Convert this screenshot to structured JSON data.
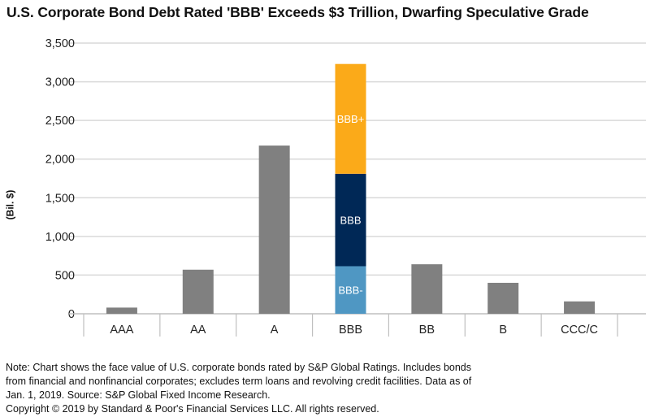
{
  "chart_data": {
    "type": "bar",
    "title": "U.S. Corporate Bond Debt Rated 'BBB' Exceeds $3 Trillion, Dwarfing Speculative Grade",
    "xlabel": "",
    "ylabel": "(Bil. $)",
    "ylim": [
      0,
      3500
    ],
    "yticks": [
      "0",
      "500",
      "1,000",
      "1,500",
      "2,000",
      "2,500",
      "3,000",
      "3,500"
    ],
    "ytick_values": [
      0,
      500,
      1000,
      1500,
      2000,
      2500,
      3000,
      3500
    ],
    "grid": true,
    "categories": [
      "AAA",
      "AA",
      "A",
      "BBB",
      "BB",
      "B",
      "CCC/C"
    ],
    "values": [
      80,
      570,
      2175,
      null,
      640,
      400,
      160
    ],
    "bar_color": "#808080",
    "stacked": {
      "category": "BBB",
      "segments": [
        {
          "name": "BBB-",
          "value": 615,
          "color": "#4f97c3"
        },
        {
          "name": "BBB",
          "value": 1195,
          "color": "#002856"
        },
        {
          "name": "BBB+",
          "value": 1420,
          "color": "#fbaa19"
        }
      ]
    }
  },
  "notes": [
    "Note: Chart shows the face value of U.S. corporate bonds rated by S&P Global Ratings. Includes bonds",
    "from financial and nonfinancial corporates; excludes term loans and revolving credit facilities. Data as of",
    "Jan. 1, 2019. Source: S&P Global Fixed Income Research.",
    "Copyright © 2019 by Standard & Poor's Financial Services LLC. All rights reserved."
  ]
}
